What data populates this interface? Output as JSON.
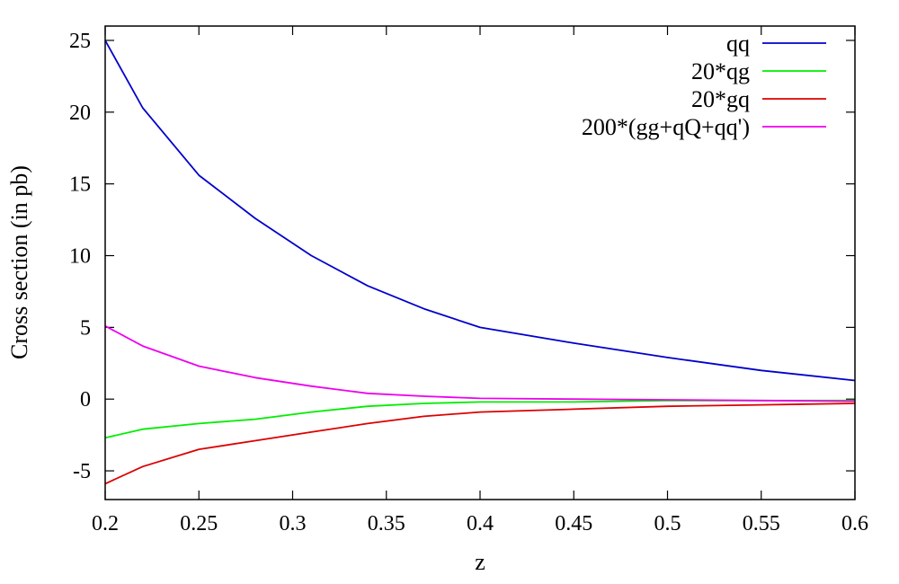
{
  "chart_data": {
    "type": "line",
    "xlabel": "z",
    "ylabel": "Cross section (in pb)",
    "xlim": [
      0.2,
      0.6
    ],
    "ylim": [
      -7,
      26
    ],
    "xticks": [
      "0.2",
      "0.25",
      "0.3",
      "0.35",
      "0.4",
      "0.45",
      "0.5",
      "0.55",
      "0.6"
    ],
    "yticks": [
      "-5",
      "0",
      "5",
      "10",
      "15",
      "20",
      "25"
    ],
    "grid": false,
    "legend_position": "top-right",
    "series": [
      {
        "name": "qq",
        "color": "#0000cc",
        "x": [
          0.2,
          0.22,
          0.25,
          0.28,
          0.31,
          0.34,
          0.37,
          0.4,
          0.45,
          0.5,
          0.55,
          0.6
        ],
        "y": [
          25.0,
          20.3,
          15.6,
          12.6,
          10.0,
          7.9,
          6.3,
          5.0,
          3.9,
          2.9,
          2.0,
          1.3
        ]
      },
      {
        "name": "20*qg",
        "color": "#00ee00",
        "x": [
          0.2,
          0.22,
          0.25,
          0.28,
          0.31,
          0.34,
          0.37,
          0.4,
          0.45,
          0.5,
          0.55,
          0.6
        ],
        "y": [
          -2.7,
          -2.1,
          -1.7,
          -1.4,
          -0.9,
          -0.5,
          -0.3,
          -0.2,
          -0.2,
          -0.1,
          -0.1,
          -0.1
        ]
      },
      {
        "name": "20*gq",
        "color": "#dd0000",
        "x": [
          0.2,
          0.22,
          0.25,
          0.28,
          0.31,
          0.34,
          0.37,
          0.4,
          0.45,
          0.5,
          0.55,
          0.6
        ],
        "y": [
          -5.9,
          -4.7,
          -3.5,
          -2.9,
          -2.3,
          -1.7,
          -1.2,
          -0.9,
          -0.7,
          -0.5,
          -0.4,
          -0.3
        ]
      },
      {
        "name": "200*(gg+qQ+qq')",
        "color": "#ee00ee",
        "x": [
          0.2,
          0.22,
          0.25,
          0.28,
          0.31,
          0.34,
          0.37,
          0.4,
          0.45,
          0.5,
          0.55,
          0.6
        ],
        "y": [
          5.1,
          3.7,
          2.3,
          1.5,
          0.9,
          0.4,
          0.2,
          0.05,
          0.0,
          -0.05,
          -0.1,
          -0.15
        ]
      }
    ]
  }
}
